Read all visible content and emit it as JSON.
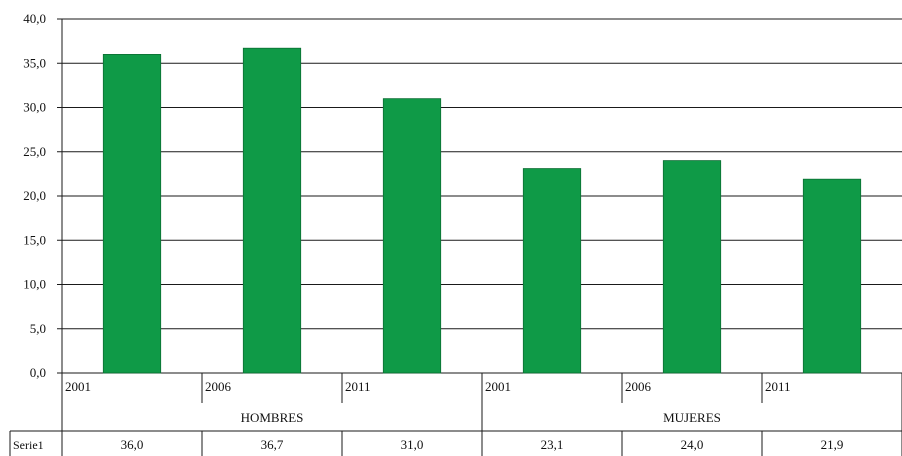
{
  "chart_data": {
    "type": "bar",
    "title": "",
    "xlabel": "",
    "ylabel": "",
    "ylim": [
      0,
      40
    ],
    "yticks": [
      "0,0",
      "5,0",
      "10,0",
      "15,0",
      "20,0",
      "25,0",
      "30,0",
      "35,0",
      "40,0"
    ],
    "grid": true,
    "groups": [
      {
        "label": "HOMBRES",
        "categories": [
          "2001",
          "2006",
          "2011"
        ]
      },
      {
        "label": "MUJERES",
        "categories": [
          "2001",
          "2006",
          "2011"
        ]
      }
    ],
    "series": [
      {
        "name": "Serie1",
        "values": [
          36.0,
          36.7,
          31.0,
          23.1,
          24.0,
          21.9
        ],
        "value_labels": [
          "36,0",
          "36,7",
          "31,0",
          "23,1",
          "24,0",
          "21,9"
        ],
        "color": "#0f9a47"
      }
    ]
  }
}
